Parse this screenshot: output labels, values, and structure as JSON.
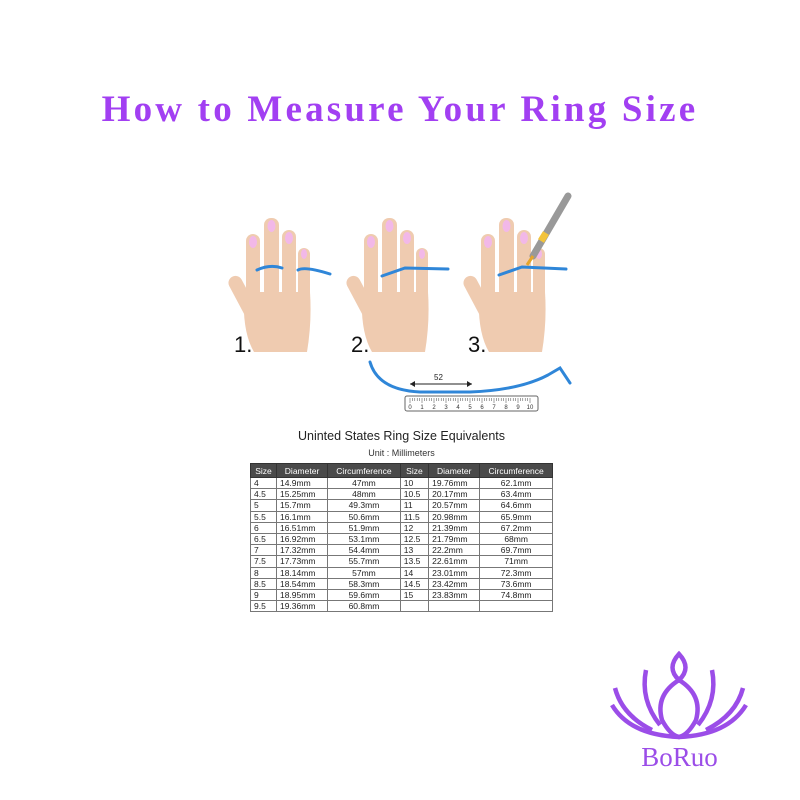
{
  "title": "How to Measure Your Ring Size",
  "steps": [
    "1.",
    "2.",
    "3."
  ],
  "ruler": {
    "measurement": "52",
    "ticks": [
      "0",
      "1",
      "2",
      "3",
      "4",
      "5",
      "6",
      "7",
      "8",
      "9",
      "10"
    ]
  },
  "table": {
    "title": "Uninted States Ring Size Equivalents",
    "unit": "Unit : Millimeters",
    "headers": [
      "Size",
      "Diameter",
      "Circumference",
      "Size",
      "Diameter",
      "Circumference"
    ],
    "rows": [
      [
        "4",
        "14.9mm",
        "47mm",
        "10",
        "19.76mm",
        "62.1mm"
      ],
      [
        "4.5",
        "15.25mm",
        "48mm",
        "10.5",
        "20.17mm",
        "63.4mm"
      ],
      [
        "5",
        "15.7mm",
        "49.3mm",
        "11",
        "20.57mm",
        "64.6mm"
      ],
      [
        "5.5",
        "16.1mm",
        "50.6mm",
        "11.5",
        "20.98mm",
        "65.9mm"
      ],
      [
        "6",
        "16.51mm",
        "51.9mm",
        "12",
        "21.39mm",
        "67.2mm"
      ],
      [
        "6.5",
        "16.92mm",
        "53.1mm",
        "12.5",
        "21.79mm",
        "68mm"
      ],
      [
        "7",
        "17.32mm",
        "54.4mm",
        "13",
        "22.2mm",
        "69.7mm"
      ],
      [
        "7.5",
        "17.73mm",
        "55.7mm",
        "13.5",
        "22.61mm",
        "71mm"
      ],
      [
        "8",
        "18.14mm",
        "57mm",
        "14",
        "23.01mm",
        "72.3mm"
      ],
      [
        "8.5",
        "18.54mm",
        "58.3mm",
        "14.5",
        "23.42mm",
        "73.6mm"
      ],
      [
        "9",
        "18.95mm",
        "59.6mm",
        "15",
        "23.83mm",
        "74.8mm"
      ],
      [
        "9.5",
        "19.36mm",
        "60.8mm",
        "",
        "",
        ""
      ]
    ]
  },
  "logo": {
    "brand": "BoRuo"
  },
  "colors": {
    "title": "#a23ff2",
    "skin": "#efcbb0",
    "nail": "#f2b8e8",
    "tape": "#2f86d8",
    "logo": "#9b4de8"
  }
}
